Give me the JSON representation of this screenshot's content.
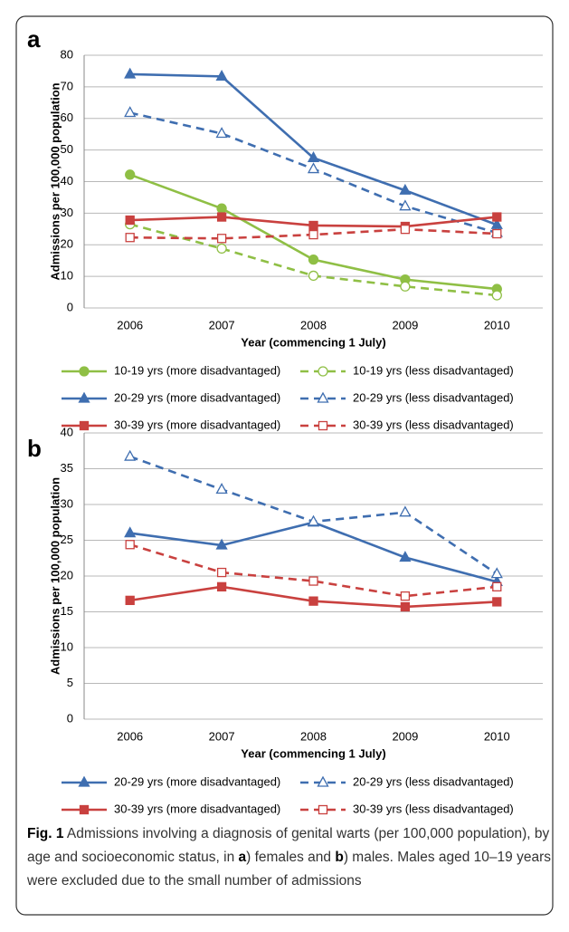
{
  "chart_data": [
    {
      "type": "line",
      "panel": "a",
      "ylabel": "Admissions per 100,000 population",
      "xlabel": "Year (commencing 1 July)",
      "categories": [
        "2006",
        "2007",
        "2008",
        "2009",
        "2010"
      ],
      "ylim": [
        0,
        80
      ],
      "yticks": [
        0,
        10,
        20,
        30,
        40,
        50,
        60,
        70,
        80
      ],
      "grid": true,
      "series": [
        {
          "name": "10-19 yrs (more disadvantaged)",
          "color": "#8fbf45",
          "dashed": false,
          "marker": "circle",
          "filled": true,
          "values": [
            42.2,
            31.5,
            15.3,
            9.0,
            6.0
          ]
        },
        {
          "name": "10-19 yrs (less disadvantaged)",
          "color": "#8fbf45",
          "dashed": true,
          "marker": "circle",
          "filled": false,
          "values": [
            26.5,
            18.8,
            10.2,
            6.8,
            4.0
          ]
        },
        {
          "name": "20-29 yrs (more disadvantaged)",
          "color": "#3f6eb0",
          "dashed": false,
          "marker": "triangle",
          "filled": true,
          "values": [
            74.0,
            73.3,
            47.5,
            37.2,
            26.3
          ]
        },
        {
          "name": "20-29 yrs (less disadvantaged)",
          "color": "#3f6eb0",
          "dashed": true,
          "marker": "triangle",
          "filled": false,
          "values": [
            61.8,
            55.2,
            44.0,
            32.2,
            23.8
          ]
        },
        {
          "name": "30-39 yrs (more disadvantaged)",
          "color": "#c9413f",
          "dashed": false,
          "marker": "square",
          "filled": true,
          "values": [
            27.8,
            28.8,
            26.1,
            25.8,
            28.8
          ]
        },
        {
          "name": "30-39 yrs (less disadvantaged)",
          "color": "#c9413f",
          "dashed": true,
          "marker": "square",
          "filled": false,
          "values": [
            22.3,
            22.0,
            23.2,
            24.9,
            23.5
          ]
        }
      ]
    },
    {
      "type": "line",
      "panel": "b",
      "ylabel": "Admissions per 100,000 population",
      "xlabel": "Year (commencing 1 July)",
      "categories": [
        "2006",
        "2007",
        "2008",
        "2009",
        "2010"
      ],
      "ylim": [
        0,
        40
      ],
      "yticks": [
        0,
        5,
        10,
        15,
        20,
        25,
        30,
        35,
        40
      ],
      "grid": true,
      "series": [
        {
          "name": "20-29 yrs (more disadvantaged)",
          "color": "#3f6eb0",
          "dashed": false,
          "marker": "triangle",
          "filled": true,
          "values": [
            26.0,
            24.3,
            27.5,
            22.6,
            19.2
          ]
        },
        {
          "name": "20-29 yrs (less disadvantaged)",
          "color": "#3f6eb0",
          "dashed": true,
          "marker": "triangle",
          "filled": false,
          "values": [
            36.7,
            32.1,
            27.6,
            28.9,
            20.3
          ]
        },
        {
          "name": "30-39 yrs (more disadvantaged)",
          "color": "#c9413f",
          "dashed": false,
          "marker": "square",
          "filled": true,
          "values": [
            16.6,
            18.5,
            16.5,
            15.7,
            16.4
          ]
        },
        {
          "name": "30-39 yrs (less disadvantaged)",
          "color": "#c9413f",
          "dashed": true,
          "marker": "square",
          "filled": false,
          "values": [
            24.4,
            20.5,
            19.3,
            17.2,
            18.5
          ]
        }
      ]
    }
  ],
  "caption": {
    "label": "Fig. 1",
    "parts": [
      {
        "text": " Admissions involving a diagnosis of genital warts (per 100,000 population), by age and socioeconomic status, in ",
        "bold": false
      },
      {
        "text": "a",
        "bold": true
      },
      {
        "text": ") females and ",
        "bold": false
      },
      {
        "text": "b",
        "bold": true
      },
      {
        "text": ") males. Males aged 10–19 years were excluded due to the small number of admissions",
        "bold": false
      }
    ]
  }
}
